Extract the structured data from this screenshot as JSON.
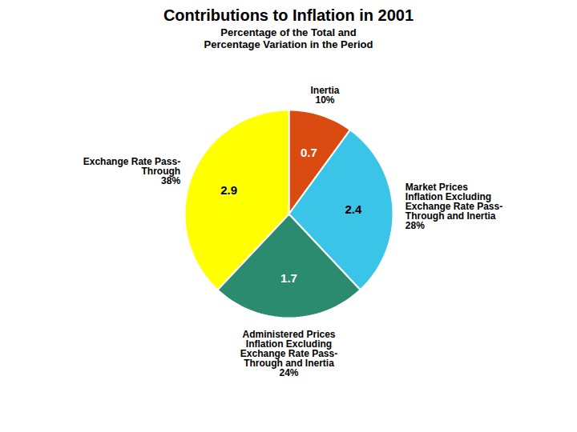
{
  "chart_data": {
    "type": "pie",
    "title": "Contributions to Inflation in 2001",
    "subtitle": "Percentage of the Total and\nPercentage Variation in the Period",
    "categories": [
      "Inertia\n10%",
      "Market Prices\nInflation Excluding\nExchange Rate Pass-\nThrough and Inertia\n28%",
      "Administered Prices\nInflation Excluding\nExchange Rate Pass-\nThrough and Inertia\n24%",
      "Exchange Rate Pass-\nThrough\n38%"
    ],
    "values": [
      10,
      28,
      24,
      38
    ],
    "variation": [
      0.7,
      2.4,
      1.7,
      2.9
    ],
    "colors": [
      "#D94B10",
      "#3AC4E8",
      "#2A8B6E",
      "#FFFF00"
    ]
  }
}
